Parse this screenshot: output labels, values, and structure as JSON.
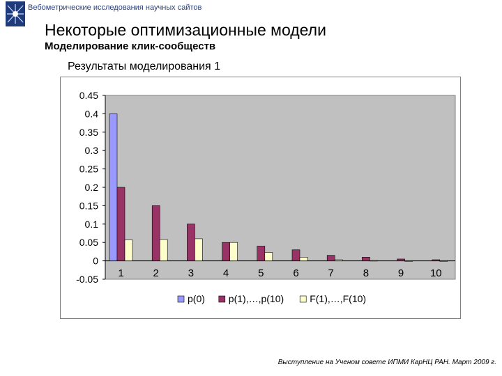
{
  "header": {
    "text": "Вебометрические исследования научных сайтов",
    "logo_icon": "institute-logo-icon"
  },
  "page": {
    "title": "Некоторые оптимизационные модели",
    "subtitle": "Моделирование клик-сообществ"
  },
  "chart_heading": "Результаты моделирования 1",
  "footer": "Выступление на Ученом совете ИПМИ КарНЦ РАН. Март 2009 г.",
  "colors": {
    "p0": "#9999ff",
    "p1": "#993366",
    "F": "#ffffcc",
    "plot_bg": "#c0c0c0"
  },
  "chart_data": {
    "type": "bar",
    "categories": [
      "1",
      "2",
      "3",
      "4",
      "5",
      "6",
      "7",
      "8",
      "9",
      "10"
    ],
    "series": [
      {
        "name": "p(0)",
        "values": [
          0.4,
          null,
          null,
          null,
          null,
          null,
          null,
          null,
          null,
          null
        ]
      },
      {
        "name": "p(1),…,p(10)",
        "values": [
          0.2,
          0.15,
          0.1,
          0.05,
          0.04,
          0.03,
          0.015,
          0.01,
          0.005,
          0.003
        ]
      },
      {
        "name": "F(1),…,F(10)",
        "values": [
          0.057,
          0.058,
          0.06,
          0.05,
          0.023,
          0.01,
          0.003,
          0.001,
          0.0,
          0.0
        ]
      }
    ],
    "y_ticks": [
      "0.45",
      "0.4",
      "0.35",
      "0.3",
      "0.25",
      "0.2",
      "0.15",
      "0.1",
      "0.05",
      "0",
      "-0.05"
    ],
    "ylim": [
      -0.05,
      0.45
    ],
    "grid": false,
    "legend": "bottom"
  }
}
